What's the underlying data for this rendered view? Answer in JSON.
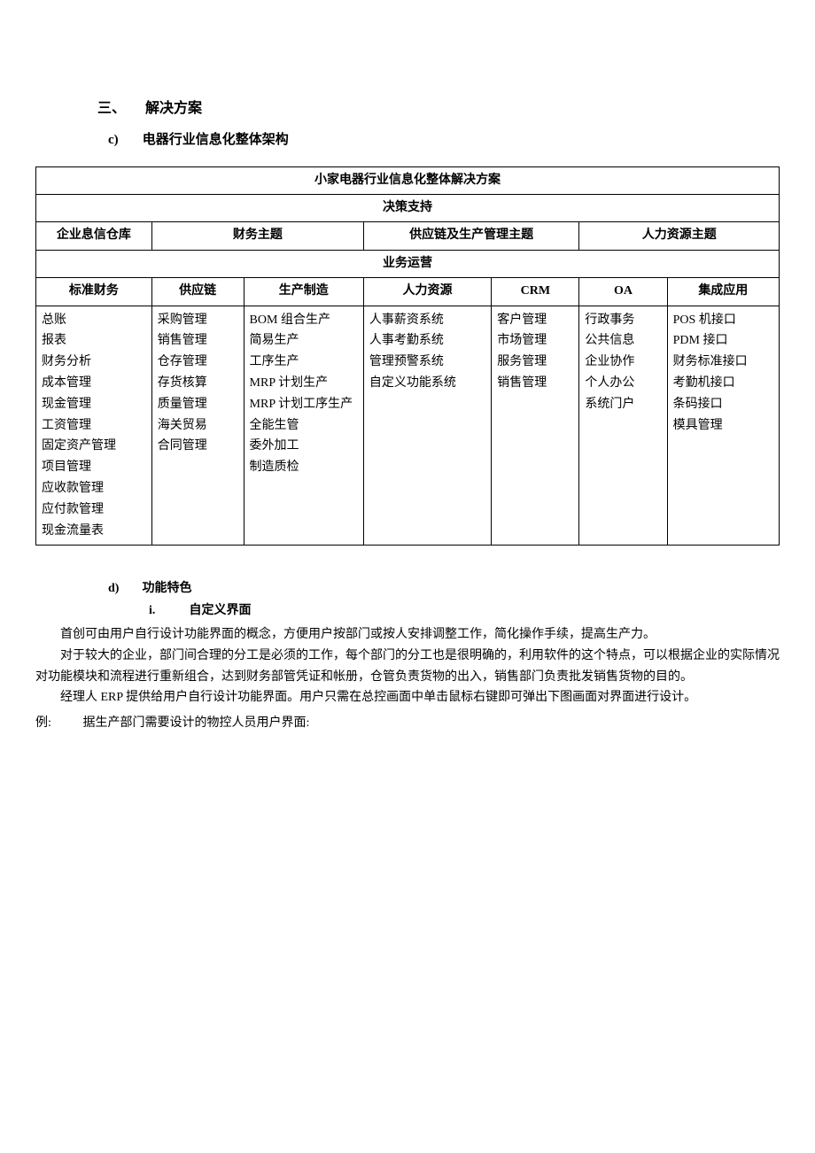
{
  "headings": {
    "section_number": "三、",
    "section_title": "解决方案",
    "sub_c_letter": "c)",
    "sub_c_title": "电器行业信息化整体架构",
    "sub_d_letter": "d)",
    "sub_d_title": "功能特色",
    "feature_i_roman": "i.",
    "feature_i_title": "自定义界面"
  },
  "table": {
    "main_title": "小家电器行业信息化整体解决方案",
    "row2_title": "决策支持",
    "row3": {
      "c1": "企业息信仓库",
      "c2": "财务主题",
      "c3": "供应链及生产管理主题",
      "c4": "人力资源主题"
    },
    "row4_title": "业务运营",
    "categories": {
      "c1": "标准财务",
      "c2": "供应链",
      "c3": "生产制造",
      "c4": "人力资源",
      "c5": "CRM",
      "c6": "OA",
      "c7": "集成应用"
    },
    "content": {
      "c1": [
        "总账",
        "报表",
        "财务分析",
        "成本管理",
        "现金管理",
        "工资管理",
        "固定资产管理",
        "项目管理",
        "应收款管理",
        "应付款管理",
        "现金流量表"
      ],
      "c2": [
        "采购管理",
        "销售管理",
        "仓存管理",
        "存货核算",
        "质量管理",
        "海关贸易",
        "合同管理"
      ],
      "c3": [
        "BOM 组合生产",
        "简易生产",
        "工序生产",
        "MRP 计划生产",
        "MRP 计划工序生产",
        "全能生管",
        "委外加工",
        "制造质检"
      ],
      "c4": [
        "人事薪资系统",
        "人事考勤系统",
        "管理预警系统",
        "自定义功能系统"
      ],
      "c5": [
        "客户管理",
        "市场管理",
        "服务管理",
        "销售管理"
      ],
      "c6": [
        "行政事务",
        "公共信息",
        "企业协作",
        "个人办公",
        "系统门户"
      ],
      "c7": [
        "POS 机接口",
        "PDM 接口",
        "财务标准接口",
        "考勤机接口",
        "条码接口",
        "模具管理"
      ]
    },
    "col_widths": [
      "14.5%",
      "11.5%",
      "15%",
      "16%",
      "11%",
      "11%",
      "14%"
    ]
  },
  "paragraphs": {
    "p1": "首创可由用户自行设计功能界面的概念，方便用户按部门或按人安排调整工作，简化操作手续，提高生产力。",
    "p2": "对于较大的企业，部门间合理的分工是必须的工作，每个部门的分工也是很明确的，利用软件的这个特点，可以根据企业的实际情况对功能模块和流程进行重新组合，达到财务部管凭证和帐册，仓管负责货物的出入，销售部门负责批发销售货物的目的。",
    "p3": "经理人 ERP 提供给用户自行设计功能界面。用户只需在总控画面中单击鼠标右键即可弹出下图画面对界面进行设计。"
  },
  "example": {
    "label": "例:",
    "text": "据生产部门需要设计的物控人员用户界面:"
  },
  "styling": {
    "background_color": "#ffffff",
    "text_color": "#000000",
    "border_color": "#000000",
    "body_font_size": 14,
    "heading_font_size": 16
  }
}
